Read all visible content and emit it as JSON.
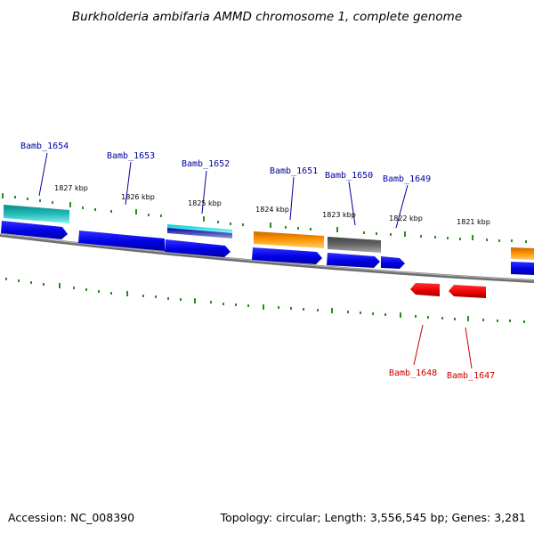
{
  "title": "Burkholderia ambifaria AMMD chromosome 1, complete genome",
  "footer": {
    "accession": "Accession: NC_008390",
    "summary": "Topology: circular; Length: 3,556,545 bp; Genes: 3,281"
  },
  "colors": {
    "forward_label": "#00009b",
    "reverse_label": "#cc0000",
    "tick": "#2e8b22",
    "backbone": "#808080",
    "cds": "#0000ee",
    "cds_reverse": "#ee0000",
    "cog_teal": "#22bbbb",
    "cog_cyan": "#33dddd",
    "cog_orange": "#ff9900",
    "cog_gray": "#666666"
  },
  "ruler_labels": [
    "1827 kbp",
    "1826 kbp",
    "1825 kbp",
    "1824 kbp",
    "1823 kbp",
    "1822 kbp",
    "1821 kbp"
  ],
  "forward_genes": [
    "Bamb_1654",
    "Bamb_1653",
    "Bamb_1652",
    "Bamb_1651",
    "Bamb_1650",
    "Bamb_1649"
  ],
  "reverse_genes": [
    "Bamb_1648",
    "Bamb_1647"
  ]
}
